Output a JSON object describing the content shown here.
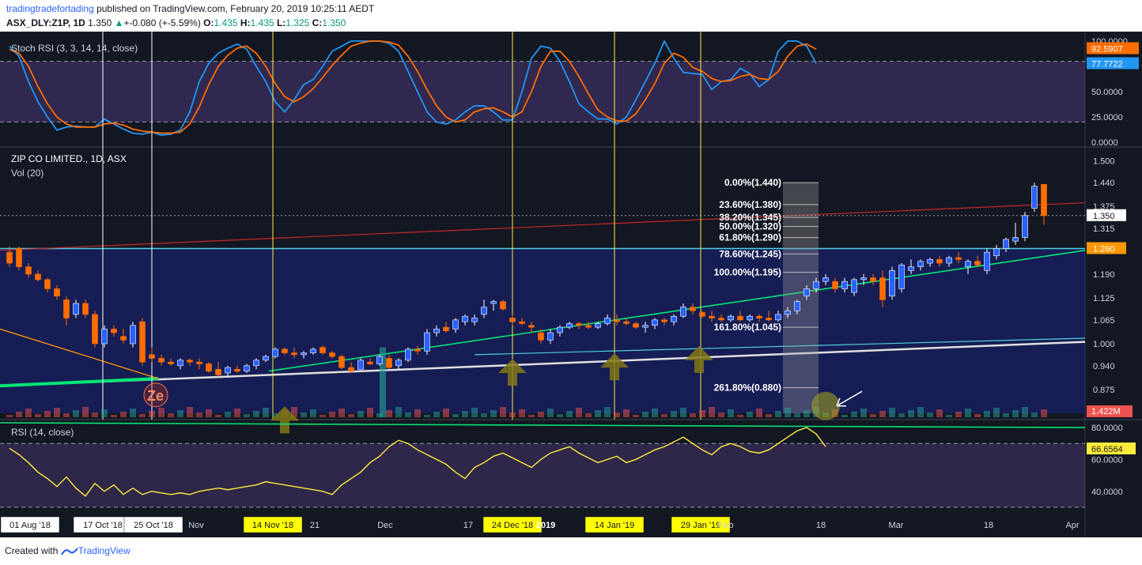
{
  "header": {
    "author": "tradingtradefortading",
    "published": " published on TradingView.com, February 20, 2019 10:25:11 AEDT",
    "symbol": "ASX_DLY:Z1P, 1D",
    "last": "1.350",
    "change_arrow": "▲",
    "change": "+-0.080 (+-5.59%)",
    "o_label": "O:",
    "o_value": "1.435",
    "h_label": "H:",
    "h_value": "1.435",
    "l_label": "L:",
    "l_value": "1.325",
    "c_label": "C:",
    "c_value": "1.350"
  },
  "footer": {
    "created_with": "Created with",
    "brand": "TradingView"
  },
  "colors": {
    "background": "#131722",
    "up": "#2962ff",
    "down": "#ff6d00",
    "green_line": "#00e676",
    "red_line": "#b71c1c",
    "rsi": "#ffeb3b",
    "stoch_k": "#2196f3",
    "stoch_d": "#ff6d00",
    "accent_yellow": "#ffff00"
  },
  "chart_data": [
    {
      "type": "line",
      "title": "Stoch RSI (3, 3, 14, 14, close)",
      "ylim": [
        0,
        100
      ],
      "y_ticks": [
        "100.0000",
        "50.0000",
        "25.0000",
        "0.0000"
      ],
      "bands": [
        20,
        80
      ],
      "last_labels": [
        "92.5907",
        "77.7722"
      ],
      "series": [
        {
          "name": "K",
          "values": [
            95,
            85,
            60,
            40,
            25,
            12,
            15,
            16,
            15,
            15,
            23,
            18,
            13,
            9,
            8,
            10,
            7,
            8,
            12,
            30,
            60,
            78,
            88,
            93,
            97,
            92,
            75,
            60,
            40,
            30,
            42,
            57,
            62,
            75,
            90,
            95,
            100,
            100,
            100,
            100,
            98,
            90,
            70,
            50,
            30,
            20,
            18,
            22,
            30,
            36,
            36,
            30,
            22,
            22,
            50,
            83,
            95,
            93,
            80,
            60,
            38,
            30,
            23,
            23,
            18,
            25,
            42,
            60,
            78,
            100,
            83,
            69,
            68,
            67,
            52,
            60,
            62,
            73,
            68,
            55,
            62,
            90,
            100,
            100,
            95,
            78
          ]
        },
        {
          "name": "D",
          "values": [
            92,
            88,
            75,
            55,
            38,
            25,
            18,
            15,
            15,
            15,
            18,
            19,
            17,
            13,
            11,
            10,
            9,
            9,
            10,
            18,
            35,
            57,
            75,
            86,
            93,
            95,
            88,
            75,
            58,
            45,
            40,
            45,
            53,
            64,
            76,
            86,
            95,
            98,
            100,
            100,
            99,
            96,
            85,
            70,
            52,
            36,
            25,
            20,
            22,
            30,
            33,
            34,
            30,
            25,
            30,
            50,
            75,
            90,
            90,
            80,
            65,
            48,
            32,
            25,
            21,
            21,
            28,
            42,
            58,
            78,
            88,
            84,
            74,
            70,
            63,
            60,
            61,
            65,
            67,
            63,
            62,
            70,
            85,
            95,
            97,
            92
          ]
        }
      ]
    },
    {
      "type": "candlestick",
      "title": "ZIP CO LIMITED., 1D, ASX",
      "subtitle": "Vol (20)",
      "ylim": [
        0.81,
        1.52
      ],
      "y_ticks": [
        "1.500",
        "1.440",
        "1.375",
        "1.315",
        "1.190",
        "1.125",
        "1.065",
        "1.000",
        "0.940",
        "0.875"
      ],
      "price_label": "1.350",
      "level_label": "1.260",
      "volume_label": "1.422M",
      "fib_levels": [
        {
          "label": "0.00%(1.440)",
          "price": 1.44
        },
        {
          "label": "23.60%(1.380)",
          "price": 1.38
        },
        {
          "label": "38.20%(1.345)",
          "price": 1.345
        },
        {
          "label": "50.00%(1.320)",
          "price": 1.32
        },
        {
          "label": "61.80%(1.290)",
          "price": 1.29
        },
        {
          "label": "78.60%(1.245)",
          "price": 1.245
        },
        {
          "label": "100.00%(1.195)",
          "price": 1.195
        },
        {
          "label": "161.80%(1.045)",
          "price": 1.045
        },
        {
          "label": "261.80%(0.880)",
          "price": 0.88
        }
      ],
      "candles": [
        [
          1.25,
          1.265,
          1.21,
          1.22
        ],
        [
          1.26,
          1.265,
          1.2,
          1.21
        ],
        [
          1.21,
          1.22,
          1.18,
          1.19
        ],
        [
          1.19,
          1.2,
          1.17,
          1.175
        ],
        [
          1.175,
          1.18,
          1.14,
          1.15
        ],
        [
          1.15,
          1.16,
          1.12,
          1.13
        ],
        [
          1.12,
          1.13,
          1.05,
          1.07
        ],
        [
          1.08,
          1.12,
          1.07,
          1.11
        ],
        [
          1.11,
          1.12,
          1.07,
          1.08
        ],
        [
          1.08,
          1.09,
          0.99,
          1.0
        ],
        [
          1.0,
          1.05,
          0.99,
          1.04
        ],
        [
          1.04,
          1.05,
          1.02,
          1.03
        ],
        [
          1.02,
          1.04,
          1.0,
          1.01
        ],
        [
          1.0,
          1.06,
          0.99,
          1.05
        ],
        [
          1.06,
          1.07,
          0.94,
          0.95
        ],
        [
          0.97,
          0.99,
          0.95,
          0.96
        ],
        [
          0.96,
          0.97,
          0.94,
          0.95
        ],
        [
          0.95,
          0.96,
          0.94,
          0.945
        ],
        [
          0.94,
          0.96,
          0.93,
          0.955
        ],
        [
          0.955,
          0.96,
          0.94,
          0.95
        ],
        [
          0.95,
          0.96,
          0.93,
          0.945
        ],
        [
          0.945,
          0.95,
          0.92,
          0.925
        ],
        [
          0.93,
          0.95,
          0.91,
          0.915
        ],
        [
          0.92,
          0.94,
          0.91,
          0.935
        ],
        [
          0.93,
          0.94,
          0.92,
          0.925
        ],
        [
          0.925,
          0.945,
          0.92,
          0.94
        ],
        [
          0.94,
          0.96,
          0.93,
          0.955
        ],
        [
          0.955,
          0.97,
          0.95,
          0.965
        ],
        [
          0.965,
          0.99,
          0.96,
          0.985
        ],
        [
          0.985,
          0.99,
          0.97,
          0.975
        ],
        [
          0.975,
          0.99,
          0.96,
          0.97
        ],
        [
          0.97,
          0.98,
          0.96,
          0.975
        ],
        [
          0.975,
          0.99,
          0.97,
          0.985
        ],
        [
          0.99,
          0.995,
          0.97,
          0.975
        ],
        [
          0.975,
          0.98,
          0.96,
          0.965
        ],
        [
          0.965,
          0.97,
          0.93,
          0.935
        ],
        [
          0.935,
          0.95,
          0.92,
          0.925
        ],
        [
          0.93,
          0.96,
          0.93,
          0.955
        ],
        [
          0.95,
          0.96,
          0.94,
          0.945
        ],
        [
          0.945,
          0.97,
          0.94,
          0.965
        ],
        [
          0.96,
          0.97,
          0.93,
          0.935
        ],
        [
          0.94,
          0.96,
          0.93,
          0.955
        ],
        [
          0.955,
          0.99,
          0.95,
          0.985
        ],
        [
          0.985,
          0.995,
          0.97,
          0.98
        ],
        [
          0.98,
          1.04,
          0.97,
          1.03
        ],
        [
          1.03,
          1.05,
          1.02,
          1.04
        ],
        [
          1.045,
          1.06,
          1.03,
          1.035
        ],
        [
          1.04,
          1.07,
          1.03,
          1.065
        ],
        [
          1.06,
          1.08,
          1.05,
          1.075
        ],
        [
          1.06,
          1.08,
          1.05,
          1.07
        ],
        [
          1.08,
          1.12,
          1.07,
          1.1
        ],
        [
          1.11,
          1.12,
          1.09,
          1.115
        ],
        [
          1.115,
          1.12,
          1.09,
          1.095
        ],
        [
          1.07,
          1.08,
          1.05,
          1.06
        ],
        [
          1.06,
          1.07,
          1.05,
          1.055
        ],
        [
          1.05,
          1.06,
          1.03,
          1.045
        ],
        [
          1.03,
          1.04,
          1.0,
          1.01
        ],
        [
          1.01,
          1.04,
          1.0,
          1.03
        ],
        [
          1.03,
          1.05,
          1.02,
          1.045
        ],
        [
          1.045,
          1.06,
          1.04,
          1.055
        ],
        [
          1.055,
          1.06,
          1.04,
          1.05
        ],
        [
          1.05,
          1.06,
          1.04,
          1.045
        ],
        [
          1.045,
          1.06,
          1.04,
          1.055
        ],
        [
          1.055,
          1.08,
          1.05,
          1.07
        ],
        [
          1.065,
          1.08,
          1.05,
          1.06
        ],
        [
          1.06,
          1.07,
          1.05,
          1.055
        ],
        [
          1.055,
          1.06,
          1.04,
          1.045
        ],
        [
          1.045,
          1.06,
          1.03,
          1.05
        ],
        [
          1.05,
          1.07,
          1.04,
          1.065
        ],
        [
          1.065,
          1.07,
          1.05,
          1.06
        ],
        [
          1.06,
          1.08,
          1.05,
          1.075
        ],
        [
          1.075,
          1.11,
          1.07,
          1.1
        ],
        [
          1.1,
          1.11,
          1.08,
          1.09
        ],
        [
          1.085,
          1.09,
          1.07,
          1.075
        ],
        [
          1.075,
          1.09,
          1.06,
          1.07
        ],
        [
          1.07,
          1.08,
          1.06,
          1.065
        ],
        [
          1.065,
          1.08,
          1.06,
          1.075
        ],
        [
          1.075,
          1.09,
          1.06,
          1.065
        ],
        [
          1.065,
          1.08,
          1.06,
          1.075
        ],
        [
          1.075,
          1.08,
          1.06,
          1.07
        ],
        [
          1.07,
          1.09,
          1.06,
          1.065
        ],
        [
          1.065,
          1.09,
          1.06,
          1.08
        ],
        [
          1.08,
          1.1,
          1.07,
          1.09
        ],
        [
          1.09,
          1.12,
          1.08,
          1.115
        ],
        [
          1.13,
          1.16,
          1.12,
          1.15
        ],
        [
          1.15,
          1.18,
          1.14,
          1.17
        ],
        [
          1.17,
          1.19,
          1.16,
          1.18
        ],
        [
          1.17,
          1.18,
          1.14,
          1.15
        ],
        [
          1.15,
          1.18,
          1.14,
          1.17
        ],
        [
          1.14,
          1.18,
          1.13,
          1.175
        ],
        [
          1.175,
          1.19,
          1.16,
          1.18
        ],
        [
          1.18,
          1.19,
          1.16,
          1.17
        ],
        [
          1.18,
          1.2,
          1.1,
          1.12
        ],
        [
          1.13,
          1.21,
          1.12,
          1.2
        ],
        [
          1.15,
          1.22,
          1.14,
          1.215
        ],
        [
          1.2,
          1.23,
          1.19,
          1.21
        ],
        [
          1.21,
          1.23,
          1.2,
          1.225
        ],
        [
          1.22,
          1.235,
          1.21,
          1.23
        ],
        [
          1.23,
          1.24,
          1.21,
          1.22
        ],
        [
          1.22,
          1.24,
          1.21,
          1.235
        ],
        [
          1.235,
          1.25,
          1.22,
          1.23
        ],
        [
          1.21,
          1.23,
          1.19,
          1.225
        ],
        [
          1.225,
          1.24,
          1.21,
          1.215
        ],
        [
          1.2,
          1.26,
          1.19,
          1.25
        ],
        [
          1.24,
          1.27,
          1.23,
          1.26
        ],
        [
          1.26,
          1.29,
          1.25,
          1.285
        ],
        [
          1.28,
          1.33,
          1.27,
          1.29
        ],
        [
          1.29,
          1.36,
          1.28,
          1.35
        ],
        [
          1.37,
          1.44,
          1.36,
          1.43
        ],
        [
          1.435,
          1.435,
          1.325,
          1.35
        ]
      ],
      "volume_max_label": "1.422M"
    },
    {
      "type": "line",
      "title": "RSI (14, close)",
      "ylim": [
        25,
        85
      ],
      "y_ticks": [
        "80.0000",
        "60.0000",
        "40.0000"
      ],
      "bands": [
        30,
        70
      ],
      "last_label": "66.6564",
      "series": [
        {
          "name": "RSI",
          "values": [
            67,
            63,
            58,
            52,
            48,
            43,
            49,
            42,
            37,
            45,
            40,
            44,
            38,
            42,
            38,
            40,
            39,
            38,
            39,
            38,
            40,
            41,
            42,
            41,
            42,
            43,
            44,
            46,
            45,
            44,
            43,
            42,
            41,
            40,
            38,
            44,
            48,
            52,
            58,
            62,
            68,
            72,
            70,
            66,
            63,
            60,
            57,
            52,
            48,
            55,
            58,
            62,
            64,
            61,
            58,
            55,
            60,
            64,
            66,
            68,
            64,
            61,
            58,
            60,
            62,
            58,
            60,
            63,
            66,
            68,
            71,
            74,
            70,
            66,
            63,
            68,
            70,
            68,
            65,
            64,
            66,
            70,
            74,
            78,
            80,
            76,
            68
          ]
        }
      ]
    }
  ],
  "x_axis": {
    "labels": [
      "01 Aug '18",
      "17 Oct '18",
      "25 Oct '18",
      "Nov",
      "14 Nov '18",
      "21",
      "Dec",
      "17",
      "24 Dec '18",
      "2019",
      "14 Jan '19",
      "29 Jan '19",
      "Feb",
      "18",
      "Mar",
      "18",
      "Apr"
    ],
    "boxed": [
      "01 Aug '18",
      "17 Oct '18",
      "25 Oct '18"
    ],
    "highlighted": [
      "14 Nov '18",
      "24 Dec '18",
      "14 Jan '19",
      "29 Jan '19"
    ]
  }
}
